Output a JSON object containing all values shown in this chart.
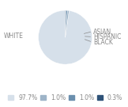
{
  "labels": [
    "WHITE",
    "ASIAN",
    "HISPANIC",
    "BLACK"
  ],
  "values": [
    97.7,
    1.0,
    1.0,
    0.3
  ],
  "colors": [
    "#d6e0ea",
    "#9eb4c8",
    "#6b8fae",
    "#2e5278"
  ],
  "legend_labels": [
    "97.7%",
    "1.0%",
    "1.0%",
    "0.3%"
  ],
  "background_color": "#ffffff",
  "text_color": "#888888",
  "label_fontsize": 5.5,
  "legend_fontsize": 5.5,
  "startangle": 90
}
